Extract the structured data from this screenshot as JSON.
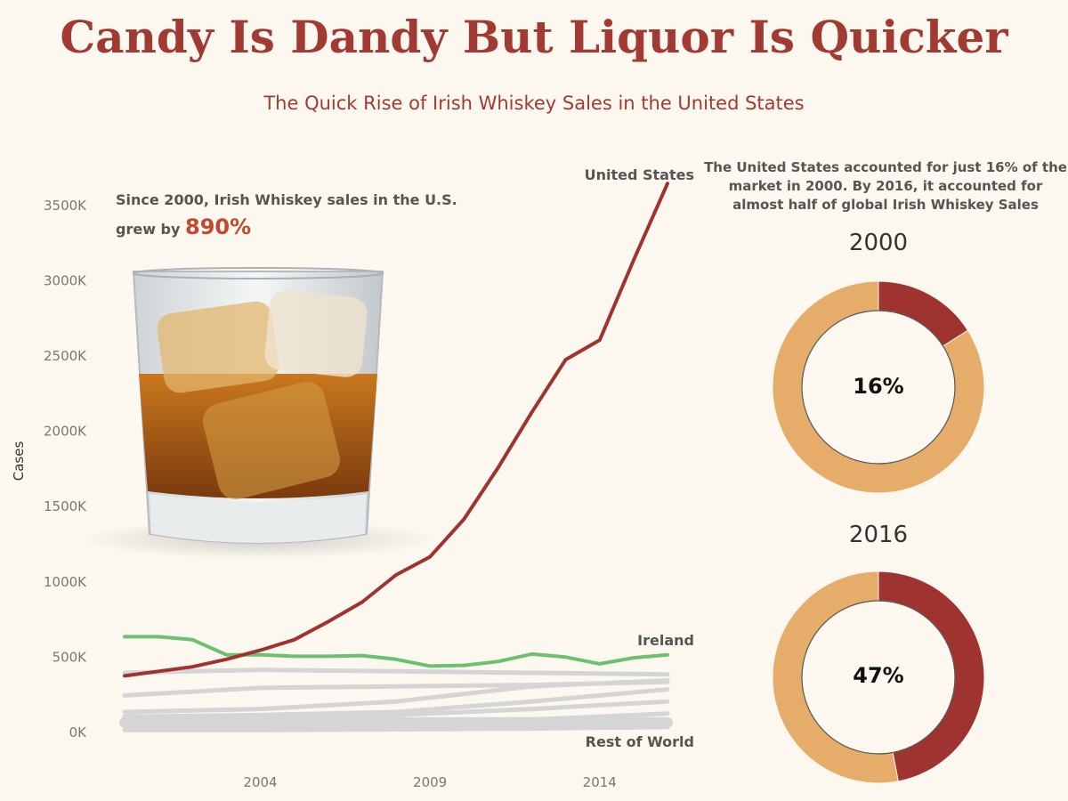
{
  "header": {
    "title": "Candy Is Dandy But Liquor Is Quicker",
    "subtitle": "The Quick Rise of Irish Whiskey Sales in the United States"
  },
  "annotation": {
    "text": "Since 2000, Irish Whiskey sales in the U.S. grew by",
    "highlight": "890%"
  },
  "donut_note": "The United States accounted for just 16% of the market in 2000. By 2016, it accounted for almost half of global Irish Whiskey Sales",
  "colors": {
    "us": "#9e3330",
    "ireland": "#6cc070",
    "rest": "#d5d5d5",
    "donut_rest": "#e6ac69"
  },
  "chart_data": [
    {
      "type": "line",
      "ylabel": "Cases",
      "ylim": [
        0,
        3700000
      ],
      "yticks": [
        0,
        500000,
        1000000,
        1500000,
        2000000,
        2500000,
        3000000,
        3500000
      ],
      "ytick_labels": [
        "0K",
        "500K",
        "1000K",
        "1500K",
        "2000K",
        "2500K",
        "3000K",
        "3500K"
      ],
      "xlim": [
        2000,
        2016
      ],
      "xticks": [
        2004,
        2009,
        2014
      ],
      "series": [
        {
          "name": "United States",
          "x": [
            2000,
            2001,
            2002,
            2003,
            2004,
            2005,
            2006,
            2007,
            2008,
            2009,
            2010,
            2011,
            2012,
            2013,
            2014,
            2015,
            2016
          ],
          "values": [
            370000,
            400000,
            430000,
            480000,
            540000,
            610000,
            730000,
            860000,
            1040000,
            1160000,
            1410000,
            1750000,
            2120000,
            2470000,
            2600000,
            3130000,
            3640000
          ]
        },
        {
          "name": "Ireland",
          "x": [
            2000,
            2001,
            2002,
            2003,
            2004,
            2005,
            2006,
            2007,
            2008,
            2009,
            2010,
            2011,
            2012,
            2013,
            2014,
            2015,
            2016
          ],
          "values": [
            630000,
            630000,
            610000,
            510000,
            510000,
            500000,
            500000,
            505000,
            480000,
            435000,
            440000,
            465000,
            515000,
            495000,
            450000,
            490000,
            510000
          ]
        },
        {
          "name": "Rest of World",
          "x": [
            2000,
            2001,
            2002,
            2003,
            2004,
            2005,
            2006,
            2007,
            2008,
            2009,
            2010,
            2011,
            2012,
            2013,
            2014,
            2015,
            2016
          ],
          "values": [
            60000,
            60000,
            60000,
            60000,
            60000,
            60000,
            60000,
            60000,
            60000,
            60000,
            60000,
            60000,
            60000,
            60000,
            60000,
            60000,
            60000
          ]
        },
        {
          "name": "",
          "x": [
            2000,
            2004,
            2008,
            2012,
            2016
          ],
          "values": [
            390000,
            410000,
            400000,
            390000,
            380000
          ]
        },
        {
          "name": "",
          "x": [
            2000,
            2004,
            2008,
            2012,
            2016
          ],
          "values": [
            240000,
            290000,
            300000,
            310000,
            330000
          ]
        },
        {
          "name": "",
          "x": [
            2000,
            2004,
            2008,
            2012,
            2016
          ],
          "values": [
            130000,
            150000,
            200000,
            300000,
            340000
          ]
        },
        {
          "name": "",
          "x": [
            2000,
            2004,
            2008,
            2012,
            2016
          ],
          "values": [
            100000,
            110000,
            130000,
            200000,
            280000
          ]
        },
        {
          "name": "",
          "x": [
            2000,
            2004,
            2008,
            2012,
            2016
          ],
          "values": [
            80000,
            90000,
            110000,
            150000,
            200000
          ]
        },
        {
          "name": "",
          "x": [
            2000,
            2004,
            2008,
            2012,
            2016
          ],
          "values": [
            40000,
            50000,
            60000,
            80000,
            120000
          ]
        },
        {
          "name": "",
          "x": [
            2000,
            2004,
            2008,
            2012,
            2016
          ],
          "values": [
            20000,
            25000,
            30000,
            40000,
            60000
          ]
        },
        {
          "name": "",
          "x": [
            2000,
            2004,
            2008,
            2012,
            2016
          ],
          "values": [
            10000,
            10000,
            15000,
            20000,
            30000
          ]
        }
      ]
    },
    {
      "type": "pie",
      "title": "2000",
      "center_label": "16%",
      "slices": [
        {
          "name": "United States",
          "value": 16
        },
        {
          "name": "Rest",
          "value": 84
        }
      ]
    },
    {
      "type": "pie",
      "title": "2016",
      "center_label": "47%",
      "slices": [
        {
          "name": "United States",
          "value": 47
        },
        {
          "name": "Rest",
          "value": 53
        }
      ]
    }
  ]
}
